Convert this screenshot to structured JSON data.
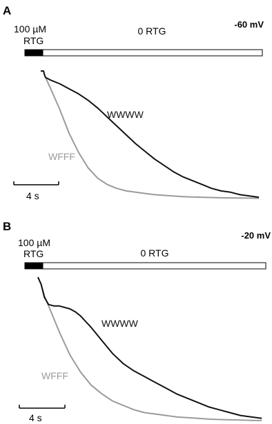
{
  "chart_data": [
    {
      "type": "line",
      "panel": "A",
      "voltage": "-60 mV",
      "protocol": {
        "pulse_line1": "100 µM",
        "pulse_line2": "RTG",
        "wash": "0 RTG"
      },
      "scale_bar": {
        "label": "4 s",
        "duration_s": 4
      },
      "x_unit": "s",
      "xlim": [
        0,
        23.5
      ],
      "ylim": [
        0,
        1
      ],
      "series": [
        {
          "name": "WWWW",
          "color": "#111111",
          "x": [
            0,
            0.3,
            0.4,
            0.5,
            1.0,
            2.0,
            3.0,
            4.0,
            5.0,
            6.0,
            7.0,
            8.0,
            9.0,
            10.0,
            11.0,
            12.0,
            13.0,
            14.0,
            15.0,
            16.0,
            17.0,
            18.0,
            19.0,
            20.0,
            21.0,
            22.0,
            23.0
          ],
          "y": [
            1.0,
            1.0,
            0.97,
            0.95,
            0.93,
            0.9,
            0.86,
            0.82,
            0.77,
            0.71,
            0.64,
            0.57,
            0.5,
            0.43,
            0.37,
            0.31,
            0.26,
            0.21,
            0.17,
            0.14,
            0.11,
            0.08,
            0.06,
            0.05,
            0.03,
            0.02,
            0.01
          ]
        },
        {
          "name": "WFFF",
          "color": "#9a9a9a",
          "x": [
            0,
            0.3,
            0.4,
            0.5,
            1.0,
            2.0,
            3.0,
            4.0,
            5.0,
            6.0,
            7.0,
            8.0,
            9.0,
            10.0,
            11.0,
            12.0,
            13.0,
            14.0,
            15.0,
            16.0,
            17.0,
            18.0,
            19.0,
            20.0,
            21.0,
            22.0,
            23.0
          ],
          "y": [
            1.0,
            1.0,
            0.97,
            0.95,
            0.87,
            0.7,
            0.51,
            0.36,
            0.24,
            0.16,
            0.11,
            0.08,
            0.06,
            0.05,
            0.04,
            0.03,
            0.025,
            0.02,
            0.015,
            0.012,
            0.01,
            0.008,
            0.006,
            0.005,
            0.004,
            0.003,
            0.002
          ]
        }
      ]
    },
    {
      "type": "line",
      "panel": "B",
      "voltage": "-20 mV",
      "protocol": {
        "pulse_line1": "100 µM",
        "pulse_line2": "RTG",
        "wash": "0 RTG"
      },
      "scale_bar": {
        "label": "4 s",
        "duration_s": 4
      },
      "x_unit": "s",
      "xlim": [
        0,
        21.7
      ],
      "ylim": [
        0,
        1
      ],
      "series": [
        {
          "name": "WWWW",
          "color": "#111111",
          "x": [
            0,
            0.3,
            0.6,
            1.0,
            1.5,
            2.0,
            3.0,
            3.5,
            4.0,
            5.0,
            6.0,
            7.0,
            8.0,
            9.0,
            10.0,
            11.0,
            12.0,
            13.0,
            14.0,
            15.0,
            16.0,
            17.0,
            18.0,
            19.0,
            20.0,
            21.0
          ],
          "y": [
            1.0,
            0.95,
            0.86,
            0.81,
            0.8,
            0.8,
            0.78,
            0.76,
            0.73,
            0.65,
            0.56,
            0.47,
            0.4,
            0.35,
            0.31,
            0.27,
            0.23,
            0.19,
            0.16,
            0.13,
            0.1,
            0.08,
            0.06,
            0.04,
            0.03,
            0.02
          ]
        },
        {
          "name": "WFFF",
          "color": "#9a9a9a",
          "x": [
            0,
            0.3,
            0.6,
            1.0,
            2.0,
            3.0,
            4.0,
            5.0,
            6.0,
            7.0,
            8.0,
            9.0,
            10.0,
            11.0,
            12.0,
            13.0,
            14.0,
            15.0,
            16.0,
            17.0,
            18.0,
            19.0,
            20.0,
            21.0
          ],
          "y": [
            1.0,
            0.95,
            0.87,
            0.8,
            0.62,
            0.46,
            0.34,
            0.25,
            0.19,
            0.14,
            0.11,
            0.08,
            0.06,
            0.05,
            0.04,
            0.03,
            0.025,
            0.02,
            0.015,
            0.012,
            0.01,
            0.008,
            0.006,
            0.005
          ]
        }
      ]
    }
  ]
}
